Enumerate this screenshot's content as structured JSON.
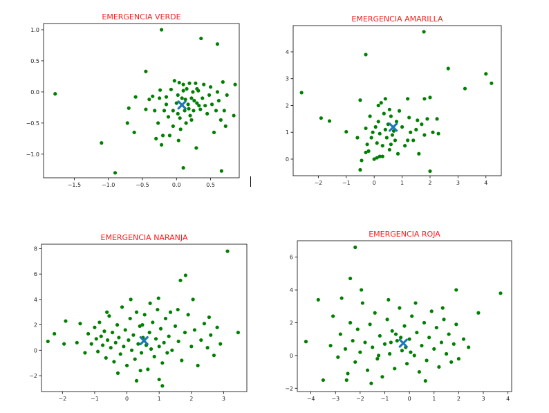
{
  "chart_data": [
    {
      "type": "scatter",
      "title": "EMERGENCIA VERDE",
      "xlim": [
        -1.95,
        0.92
      ],
      "ylim": [
        -1.38,
        1.1
      ],
      "xticks": [
        -1.5,
        -1.0,
        -0.5,
        0.0,
        0.5
      ],
      "xtick_labels": [
        "−1.5",
        "−1.0",
        "−0.5",
        "0.0",
        "0.5"
      ],
      "yticks": [
        -1.0,
        -0.5,
        0.0,
        0.5,
        1.0
      ],
      "ytick_labels": [
        "−1.0",
        "−0.5",
        "0.0",
        "0.5",
        "1.0"
      ],
      "point_color": "#008000",
      "centroid_color": "#1f77b4",
      "centroid": [
        0.08,
        -0.21
      ],
      "points": [
        [
          -1.78,
          -0.03
        ],
        [
          -1.1,
          -0.82
        ],
        [
          -0.9,
          -1.3
        ],
        [
          -0.22,
          1.0
        ],
        [
          0.36,
          0.86
        ],
        [
          0.6,
          0.77
        ],
        [
          -0.45,
          0.33
        ],
        [
          0.66,
          -1.27
        ],
        [
          0.1,
          -1.22
        ],
        [
          0.29,
          -0.9
        ],
        [
          0.86,
          0.12
        ],
        [
          0.84,
          -0.38
        ],
        [
          -0.7,
          -0.26
        ],
        [
          -0.72,
          -0.5
        ],
        [
          -0.62,
          -0.65
        ],
        [
          -0.6,
          -0.08
        ],
        [
          -0.45,
          -0.28
        ],
        [
          -0.4,
          -0.12
        ],
        [
          -0.35,
          -0.07
        ],
        [
          -0.32,
          -0.3
        ],
        [
          -0.27,
          -0.5
        ],
        [
          -0.25,
          -0.1
        ],
        [
          -0.22,
          -0.85
        ],
        [
          -0.2,
          -0.7
        ],
        [
          -0.18,
          -0.3
        ],
        [
          -0.15,
          -0.08
        ],
        [
          -0.12,
          -0.4
        ],
        [
          -0.1,
          -0.7
        ],
        [
          -0.08,
          0.04
        ],
        [
          -0.05,
          -0.3
        ],
        [
          -0.03,
          0.18
        ],
        [
          0.0,
          -0.18
        ],
        [
          0.02,
          -0.05
        ],
        [
          0.04,
          0.15
        ],
        [
          0.05,
          -0.42
        ],
        [
          0.06,
          -0.6
        ],
        [
          0.08,
          -0.1
        ],
        [
          0.1,
          0.02
        ],
        [
          0.12,
          -0.3
        ],
        [
          0.14,
          -0.5
        ],
        [
          0.15,
          0.05
        ],
        [
          0.17,
          -0.2
        ],
        [
          0.19,
          0.14
        ],
        [
          0.2,
          -0.38
        ],
        [
          0.22,
          -0.1
        ],
        [
          0.24,
          0.0
        ],
        [
          0.25,
          -0.3
        ],
        [
          0.28,
          0.14
        ],
        [
          0.3,
          -0.18
        ],
        [
          0.32,
          0.02
        ],
        [
          0.35,
          -0.28
        ],
        [
          0.38,
          -0.1
        ],
        [
          0.4,
          0.12
        ],
        [
          0.42,
          -0.22
        ],
        [
          0.45,
          -0.35
        ],
        [
          0.48,
          -0.05
        ],
        [
          0.5,
          0.08
        ],
        [
          0.52,
          -0.2
        ],
        [
          0.55,
          -0.65
        ],
        [
          0.58,
          -0.3
        ],
        [
          0.6,
          0.0
        ],
        [
          0.62,
          -0.14
        ],
        [
          0.65,
          -0.45
        ],
        [
          0.68,
          0.16
        ],
        [
          0.7,
          -0.3
        ],
        [
          0.72,
          -0.55
        ],
        [
          0.74,
          -0.05
        ],
        [
          0.03,
          -0.78
        ],
        [
          -0.3,
          -0.75
        ],
        [
          -0.24,
          0.03
        ],
        [
          0.13,
          -0.12
        ],
        [
          0.18,
          -0.27
        ],
        [
          0.26,
          -0.14
        ],
        [
          0.33,
          -0.22
        ],
        [
          0.1,
          0.12
        ],
        [
          -0.15,
          -0.2
        ],
        [
          -0.05,
          -0.55
        ],
        [
          0.02,
          -0.35
        ],
        [
          0.22,
          -0.45
        ],
        [
          0.3,
          0.05
        ]
      ]
    },
    {
      "type": "scatter",
      "title": "EMERGENCIA AMARILLA",
      "xlim": [
        -2.9,
        4.55
      ],
      "ylim": [
        -0.62,
        4.98
      ],
      "xticks": [
        -2,
        -1,
        0,
        1,
        2,
        3,
        4
      ],
      "xtick_labels": [
        "−2",
        "−1",
        "0",
        "1",
        "2",
        "3",
        "4"
      ],
      "yticks": [
        0,
        1,
        2,
        3,
        4
      ],
      "ytick_labels": [
        "0",
        "1",
        "2",
        "3",
        "4"
      ],
      "point_color": "#008000",
      "centroid_color": "#1f77b4",
      "centroid": [
        0.68,
        1.19
      ],
      "points": [
        [
          -2.6,
          2.48
        ],
        [
          -1.9,
          1.53
        ],
        [
          -1.6,
          1.42
        ],
        [
          -1.0,
          1.02
        ],
        [
          -0.3,
          3.9
        ],
        [
          1.78,
          4.75
        ],
        [
          2.65,
          3.38
        ],
        [
          3.25,
          2.63
        ],
        [
          4.0,
          3.18
        ],
        [
          4.2,
          2.83
        ],
        [
          -0.6,
          0.8
        ],
        [
          -0.5,
          -0.4
        ],
        [
          -0.45,
          -0.05
        ],
        [
          -0.3,
          1.15
        ],
        [
          -0.25,
          0.55
        ],
        [
          -0.2,
          0.3
        ],
        [
          -0.15,
          1.6
        ],
        [
          -0.1,
          0.8
        ],
        [
          -0.05,
          1.0
        ],
        [
          0.0,
          0.0
        ],
        [
          0.05,
          1.2
        ],
        [
          0.1,
          0.6
        ],
        [
          0.15,
          1.4
        ],
        [
          0.2,
          0.95
        ],
        [
          0.25,
          2.1
        ],
        [
          0.3,
          0.5
        ],
        [
          0.35,
          1.7
        ],
        [
          0.4,
          1.1
        ],
        [
          0.45,
          0.8
        ],
        [
          0.5,
          1.3
        ],
        [
          0.55,
          0.35
        ],
        [
          0.6,
          1.6
        ],
        [
          0.65,
          0.9
        ],
        [
          0.7,
          1.05
        ],
        [
          0.75,
          0.7
        ],
        [
          0.8,
          1.4
        ],
        [
          0.85,
          0.2
        ],
        [
          1.0,
          1.2
        ],
        [
          1.1,
          0.5
        ],
        [
          1.2,
          0.7
        ],
        [
          1.3,
          1.0
        ],
        [
          1.4,
          0.7
        ],
        [
          1.5,
          1.1
        ],
        [
          1.6,
          0.2
        ],
        [
          1.7,
          1.3
        ],
        [
          1.8,
          0.9
        ],
        [
          1.9,
          1.5
        ],
        [
          2.0,
          2.3
        ],
        [
          2.1,
          1.0
        ],
        [
          2.25,
          1.5
        ],
        [
          2.3,
          0.95
        ],
        [
          2.0,
          -0.45
        ],
        [
          1.55,
          1.45
        ],
        [
          1.8,
          2.25
        ],
        [
          1.2,
          2.25
        ],
        [
          0.4,
          2.25
        ],
        [
          -0.5,
          2.2
        ],
        [
          0.1,
          0.05
        ],
        [
          0.2,
          0.1
        ],
        [
          0.3,
          0.1
        ],
        [
          -0.3,
          0.25
        ],
        [
          0.6,
          0.55
        ],
        [
          0.9,
          1.8
        ],
        [
          1.25,
          1.55
        ],
        [
          0.55,
          1.85
        ],
        [
          0.15,
          2.0
        ]
      ]
    },
    {
      "type": "scatter",
      "title": "EMERGENCIA NARANJA",
      "xlim": [
        -2.65,
        3.72
      ],
      "ylim": [
        -3.25,
        8.35
      ],
      "xticks": [
        -2,
        -1,
        0,
        1,
        2,
        3
      ],
      "xtick_labels": [
        "−2",
        "−1",
        "0",
        "1",
        "2",
        "3"
      ],
      "yticks": [
        -2,
        0,
        2,
        4,
        6,
        8
      ],
      "ytick_labels": [
        "−2",
        "0",
        "2",
        "4",
        "6",
        "8"
      ],
      "point_color": "#008000",
      "centroid_color": "#1f77b4",
      "centroid": [
        0.53,
        0.75
      ],
      "points": [
        [
          -2.45,
          0.7
        ],
        [
          -2.25,
          1.3
        ],
        [
          -1.95,
          0.5
        ],
        [
          -1.9,
          2.3
        ],
        [
          3.12,
          7.8
        ],
        [
          3.45,
          1.4
        ],
        [
          1.82,
          5.9
        ],
        [
          1.66,
          5.5
        ],
        [
          0.98,
          4.1
        ],
        [
          2.05,
          4.0
        ],
        [
          1.1,
          -2.8
        ],
        [
          1.0,
          -2.3
        ],
        [
          0.3,
          -2.4
        ],
        [
          -1.3,
          -0.2
        ],
        [
          -1.2,
          1.3
        ],
        [
          -1.1,
          0.5
        ],
        [
          -1.0,
          1.8
        ],
        [
          -0.95,
          0.9
        ],
        [
          -0.9,
          -0.1
        ],
        [
          -0.85,
          2.2
        ],
        [
          -0.8,
          1.1
        ],
        [
          -0.75,
          0.4
        ],
        [
          -0.7,
          1.5
        ],
        [
          -0.65,
          -0.6
        ],
        [
          -0.6,
          0.8
        ],
        [
          -0.55,
          2.7
        ],
        [
          -0.5,
          0.2
        ],
        [
          -0.45,
          1.4
        ],
        [
          -0.4,
          -0.9
        ],
        [
          -0.35,
          0.6
        ],
        [
          -0.3,
          2.0
        ],
        [
          -0.25,
          1.0
        ],
        [
          -0.2,
          -0.3
        ],
        [
          -0.15,
          3.4
        ],
        [
          -0.1,
          0.3
        ],
        [
          -0.05,
          1.6
        ],
        [
          0.0,
          -1.2
        ],
        [
          0.05,
          0.8
        ],
        [
          0.1,
          2.5
        ],
        [
          0.15,
          0.0
        ],
        [
          0.2,
          1.2
        ],
        [
          0.25,
          -0.7
        ],
        [
          0.3,
          3.0
        ],
        [
          0.35,
          0.5
        ],
        [
          0.4,
          1.9
        ],
        [
          0.45,
          -0.2
        ],
        [
          0.5,
          1.0
        ],
        [
          0.55,
          2.8
        ],
        [
          0.6,
          0.4
        ],
        [
          0.65,
          -1.5
        ],
        [
          0.7,
          1.4
        ],
        [
          0.75,
          0.1
        ],
        [
          0.8,
          2.2
        ],
        [
          0.85,
          -0.5
        ],
        [
          0.9,
          0.9
        ],
        [
          0.95,
          3.2
        ],
        [
          1.0,
          0.3
        ],
        [
          1.05,
          1.7
        ],
        [
          1.1,
          -1.0
        ],
        [
          1.15,
          0.6
        ],
        [
          1.2,
          2.5
        ],
        [
          1.25,
          -0.2
        ],
        [
          1.3,
          1.1
        ],
        [
          1.4,
          0.0
        ],
        [
          1.5,
          1.9
        ],
        [
          1.6,
          0.7
        ],
        [
          1.7,
          -0.8
        ],
        [
          1.8,
          1.4
        ],
        [
          1.9,
          2.8
        ],
        [
          2.0,
          0.3
        ],
        [
          2.1,
          1.6
        ],
        [
          2.2,
          -1.2
        ],
        [
          2.3,
          0.8
        ],
        [
          2.4,
          2.1
        ],
        [
          2.5,
          0.2
        ],
        [
          2.6,
          1.2
        ],
        [
          2.7,
          -0.4
        ],
        [
          2.8,
          1.8
        ],
        [
          2.9,
          0.5
        ],
        [
          -1.55,
          0.6
        ],
        [
          -1.45,
          2.1
        ],
        [
          -0.28,
          -1.8
        ],
        [
          0.42,
          -1.6
        ],
        [
          1.35,
          3.0
        ],
        [
          2.55,
          2.6
        ],
        [
          -0.62,
          3.0
        ],
        [
          0.12,
          4.0
        ],
        [
          0.72,
          3.7
        ],
        [
          1.58,
          3.2
        ],
        [
          0.48,
          2.0
        ]
      ]
    },
    {
      "type": "scatter",
      "title": "EMERGENCIA ROJA",
      "xlim": [
        -4.55,
        4.15
      ],
      "ylim": [
        -2.2,
        7.0
      ],
      "xticks": [
        -4,
        -3,
        -2,
        -1,
        0,
        1,
        2,
        3,
        4
      ],
      "xtick_labels": [
        "−4",
        "−3",
        "−2",
        "−1",
        "0",
        "1",
        "2",
        "3",
        "4"
      ],
      "yticks": [
        -2,
        0,
        2,
        4,
        6
      ],
      "ytick_labels": [
        "−2",
        "0",
        "2",
        "4",
        "6"
      ],
      "point_color": "#008000",
      "centroid_color": "#1f77b4",
      "centroid": [
        -0.25,
        0.75
      ],
      "points": [
        [
          -4.2,
          0.85
        ],
        [
          -3.7,
          3.4
        ],
        [
          -3.5,
          -1.5
        ],
        [
          -2.75,
          3.5
        ],
        [
          -2.4,
          4.7
        ],
        [
          -2.2,
          6.6
        ],
        [
          3.7,
          3.8
        ],
        [
          2.8,
          2.6
        ],
        [
          1.9,
          4.0
        ],
        [
          -3.2,
          0.6
        ],
        [
          -3.1,
          2.4
        ],
        [
          -2.9,
          -0.1
        ],
        [
          -2.8,
          1.3
        ],
        [
          -2.6,
          0.4
        ],
        [
          -2.5,
          -1.1
        ],
        [
          -2.4,
          2.0
        ],
        [
          -2.3,
          0.9
        ],
        [
          -2.2,
          -0.4
        ],
        [
          -2.1,
          1.6
        ],
        [
          -2.0,
          0.2
        ],
        [
          -1.9,
          3.2
        ],
        [
          -1.8,
          0.8
        ],
        [
          -1.7,
          -0.9
        ],
        [
          -1.6,
          1.9
        ],
        [
          -1.5,
          0.5
        ],
        [
          -1.4,
          2.6
        ],
        [
          -1.3,
          -0.2
        ],
        [
          -1.2,
          1.2
        ],
        [
          -1.1,
          -1.3
        ],
        [
          -1.0,
          0.7
        ],
        [
          -0.9,
          2.2
        ],
        [
          -0.8,
          0.1
        ],
        [
          -0.7,
          1.5
        ],
        [
          -0.6,
          -0.8
        ],
        [
          -0.5,
          0.9
        ],
        [
          -0.4,
          2.9
        ],
        [
          -0.3,
          0.3
        ],
        [
          -0.2,
          1.8
        ],
        [
          -0.1,
          -0.5
        ],
        [
          0.0,
          1.0
        ],
        [
          0.1,
          2.4
        ],
        [
          0.2,
          0.0
        ],
        [
          0.3,
          1.4
        ],
        [
          0.4,
          -1.0
        ],
        [
          0.5,
          0.6
        ],
        [
          0.6,
          2.0
        ],
        [
          0.7,
          -0.3
        ],
        [
          0.8,
          1.1
        ],
        [
          0.9,
          2.7
        ],
        [
          1.0,
          0.4
        ],
        [
          1.1,
          1.7
        ],
        [
          1.2,
          -0.7
        ],
        [
          1.3,
          0.8
        ],
        [
          1.4,
          2.2
        ],
        [
          1.5,
          0.1
        ],
        [
          1.6,
          1.3
        ],
        [
          1.7,
          -0.4
        ],
        [
          1.8,
          0.7
        ],
        [
          1.9,
          1.9
        ],
        [
          2.0,
          -0.2
        ],
        [
          2.2,
          1.0
        ],
        [
          2.4,
          0.5
        ],
        [
          -1.55,
          -1.7
        ],
        [
          -2.55,
          -1.5
        ],
        [
          0.65,
          -1.55
        ],
        [
          -0.85,
          3.4
        ],
        [
          0.25,
          3.2
        ],
        [
          -1.95,
          4.0
        ],
        [
          1.35,
          2.9
        ],
        [
          -0.55,
          1.3
        ],
        [
          -0.35,
          1.1
        ],
        [
          -0.15,
          0.5
        ],
        [
          0.05,
          0.2
        ],
        [
          -1.25,
          0.0
        ],
        [
          -0.75,
          0.8
        ]
      ]
    }
  ]
}
